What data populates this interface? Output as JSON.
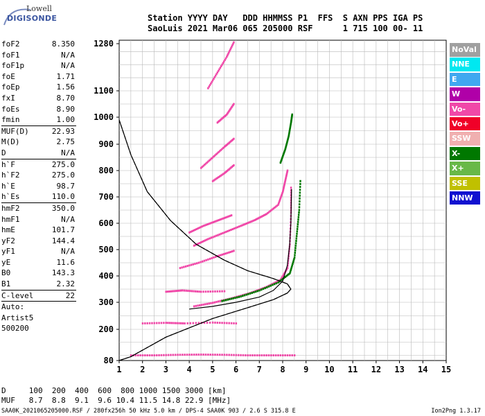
{
  "logo": {
    "line1": "Lowell",
    "line2": "DIGISONDE"
  },
  "header": {
    "line1": "Station YYYY DAY   DDD HHMMSS P1  FFS  S AXN PPS IGA PS",
    "line2": "SaoLuis 2021 Mar06 065 205000 RSF      1 715 100 00- 11"
  },
  "params": {
    "group1": [
      {
        "key": "foF2",
        "value": "8.350"
      },
      {
        "key": "foF1",
        "value": "N/A"
      },
      {
        "key": "foF1p",
        "value": "N/A"
      },
      {
        "key": "foE",
        "value": "1.71"
      },
      {
        "key": "foEp",
        "value": "1.56"
      },
      {
        "key": "fxI",
        "value": "8.70"
      },
      {
        "key": "foEs",
        "value": "8.90"
      },
      {
        "key": "fmin",
        "value": "1.00"
      }
    ],
    "group2": [
      {
        "key": "MUF(D)",
        "value": "22.93"
      },
      {
        "key": "M(D)",
        "value": "2.75"
      },
      {
        "key": "D",
        "value": "N/A"
      }
    ],
    "group3": [
      {
        "key": "h`F",
        "value": "275.0"
      },
      {
        "key": "h`F2",
        "value": "275.0"
      },
      {
        "key": "h`E",
        "value": "98.7"
      },
      {
        "key": "h`Es",
        "value": "110.0"
      }
    ],
    "group4": [
      {
        "key": "hmF2",
        "value": "350.0"
      },
      {
        "key": "hmF1",
        "value": "N/A"
      },
      {
        "key": "hmE",
        "value": "101.7"
      },
      {
        "key": "yF2",
        "value": "144.4"
      },
      {
        "key": "yF1",
        "value": "N/A"
      },
      {
        "key": "yE",
        "value": "11.6"
      },
      {
        "key": "B0",
        "value": "143.3"
      },
      {
        "key": "B1",
        "value": "2.32"
      }
    ],
    "group5": [
      {
        "key": "C-level",
        "value": "22"
      }
    ],
    "auto": [
      "Auto:",
      "Artist5",
      "500200"
    ]
  },
  "legend": [
    {
      "label": "NoVal",
      "color": "#a0a0a0"
    },
    {
      "label": "NNE",
      "color": "#00e8f0"
    },
    {
      "label": "E",
      "color": "#40a8f0"
    },
    {
      "label": "W",
      "color": "#b000a8"
    },
    {
      "label": "Vo-",
      "color": "#f048a8"
    },
    {
      "label": "Vo+",
      "color": "#f00028"
    },
    {
      "label": "SSW",
      "color": "#f0b0b0"
    },
    {
      "label": "X-",
      "color": "#007800"
    },
    {
      "label": "X+",
      "color": "#68b848"
    },
    {
      "label": "SSE",
      "color": "#c0c000"
    },
    {
      "label": "NNW",
      "color": "#1010d0"
    }
  ],
  "bottom": {
    "line1": "D     100  200  400  600  800 1000 1500 3000 [km]",
    "line2": "MUF   8.7  8.8  9.1  9.6 10.4 11.5 14.8 22.9 [MHz]"
  },
  "footer": {
    "left": "SAA0K_2021065205000.RSF / 280fx256h 50 kHz 5.0 km / DPS-4 SAA0K 903 / 2.6 S 315.8 E",
    "right": "Ion2Png 1.3.17"
  },
  "chart_data": {
    "type": "scatter",
    "x_range": [
      1,
      15
    ],
    "x_ticks": [
      1,
      2,
      3,
      4,
      5,
      6,
      7,
      8,
      9,
      10,
      11,
      12,
      13,
      14,
      15
    ],
    "y_range": [
      80,
      1300
    ],
    "y_ticks": [
      80,
      200,
      300,
      400,
      500,
      600,
      700,
      800,
      900,
      1000,
      1100,
      1280
    ],
    "grid": true,
    "series": [
      {
        "color": "#f048a8",
        "points": [
          [
            4.2,
            285
          ],
          [
            5.0,
            298
          ],
          [
            5.8,
            315
          ],
          [
            6.6,
            335
          ],
          [
            7.3,
            358
          ],
          [
            7.9,
            385
          ],
          [
            8.2,
            430
          ],
          [
            8.3,
            520
          ],
          [
            8.35,
            640
          ],
          [
            8.35,
            735
          ]
        ]
      },
      {
        "color": "#007800",
        "points": [
          [
            5.4,
            305
          ],
          [
            6.2,
            322
          ],
          [
            7.0,
            345
          ],
          [
            7.8,
            375
          ],
          [
            8.3,
            410
          ],
          [
            8.5,
            470
          ],
          [
            8.6,
            560
          ],
          [
            8.7,
            650
          ],
          [
            8.75,
            760
          ]
        ]
      },
      {
        "color": "#f048a8",
        "points": [
          [
            4.2,
            515
          ],
          [
            4.8,
            540
          ],
          [
            5.5,
            565
          ],
          [
            6.2,
            590
          ],
          [
            6.8,
            612
          ],
          [
            7.3,
            635
          ],
          [
            7.8,
            670
          ],
          [
            8.0,
            720
          ],
          [
            8.1,
            760
          ],
          [
            8.2,
            800
          ]
        ]
      },
      {
        "color": "#007800",
        "points": [
          [
            7.9,
            830
          ],
          [
            8.1,
            880
          ],
          [
            8.25,
            930
          ],
          [
            8.35,
            980
          ],
          [
            8.4,
            1010
          ]
        ]
      },
      {
        "color": "#f048a8",
        "points": [
          [
            4.5,
            810
          ],
          [
            5.0,
            850
          ],
          [
            5.5,
            890
          ],
          [
            5.9,
            920
          ]
        ]
      },
      {
        "color": "#f048a8",
        "points": [
          [
            4.8,
            1110
          ],
          [
            5.2,
            1170
          ],
          [
            5.6,
            1230
          ],
          [
            5.9,
            1285
          ]
        ]
      },
      {
        "color": "#f048a8",
        "points": [
          [
            3.6,
            430
          ],
          [
            4.4,
            450
          ],
          [
            5.2,
            475
          ],
          [
            5.9,
            495
          ]
        ]
      },
      {
        "color": "#f048a8",
        "points": [
          [
            4.0,
            565
          ],
          [
            4.6,
            590
          ],
          [
            5.2,
            610
          ],
          [
            5.8,
            630
          ]
        ]
      },
      {
        "color": "#f048a8",
        "points": [
          [
            1.5,
            100
          ],
          [
            2.5,
            100
          ],
          [
            3.5,
            102
          ],
          [
            4.5,
            103
          ],
          [
            5.5,
            102
          ],
          [
            6.5,
            100
          ],
          [
            7.5,
            100
          ],
          [
            8.5,
            100
          ]
        ]
      },
      {
        "color": "#f048a8",
        "points": [
          [
            2.0,
            222
          ],
          [
            3.0,
            224
          ],
          [
            3.8,
            222
          ],
          [
            5.0,
            225
          ],
          [
            6.0,
            222
          ]
        ]
      },
      {
        "color": "#f048a8",
        "points": [
          [
            3.0,
            340
          ],
          [
            3.7,
            345
          ],
          [
            4.5,
            340
          ],
          [
            5.5,
            342
          ]
        ]
      },
      {
        "color": "#f048a8",
        "points": [
          [
            5.0,
            760
          ],
          [
            5.5,
            790
          ],
          [
            5.9,
            820
          ]
        ]
      },
      {
        "color": "#f048a8",
        "points": [
          [
            5.2,
            980
          ],
          [
            5.6,
            1010
          ],
          [
            5.9,
            1050
          ]
        ]
      }
    ],
    "profiles": [
      {
        "style": "solid",
        "points": [
          [
            1,
            80
          ],
          [
            1.5,
            95
          ],
          [
            3,
            170
          ],
          [
            5,
            240
          ],
          [
            6.5,
            280
          ],
          [
            7.6,
            310
          ],
          [
            8.2,
            335
          ],
          [
            8.35,
            350
          ],
          [
            8.2,
            370
          ],
          [
            7.6,
            390
          ],
          [
            6.5,
            420
          ],
          [
            5.5,
            460
          ],
          [
            4.3,
            520
          ],
          [
            3.2,
            610
          ],
          [
            2.2,
            720
          ],
          [
            1.5,
            860
          ],
          [
            1,
            990
          ]
        ]
      },
      {
        "style": "dashed",
        "points": [
          [
            1,
            990
          ],
          [
            1.5,
            860
          ],
          [
            2.2,
            720
          ],
          [
            3.2,
            610
          ],
          [
            4.3,
            520
          ],
          [
            5.5,
            460
          ],
          [
            6.5,
            420
          ],
          [
            7.6,
            390
          ],
          [
            8.2,
            370
          ],
          [
            8.35,
            350
          ],
          [
            8.2,
            335
          ],
          [
            7.6,
            310
          ],
          [
            6.5,
            280
          ],
          [
            5,
            240
          ],
          [
            3,
            170
          ],
          [
            1.5,
            95
          ],
          [
            1,
            80
          ]
        ]
      },
      {
        "style": "solid",
        "points": [
          [
            4.0,
            275
          ],
          [
            5.0,
            285
          ],
          [
            6.0,
            300
          ],
          [
            7.0,
            320
          ],
          [
            7.6,
            345
          ],
          [
            8.0,
            380
          ],
          [
            8.2,
            440
          ],
          [
            8.3,
            520
          ],
          [
            8.35,
            600
          ],
          [
            8.38,
            730
          ]
        ]
      }
    ]
  }
}
